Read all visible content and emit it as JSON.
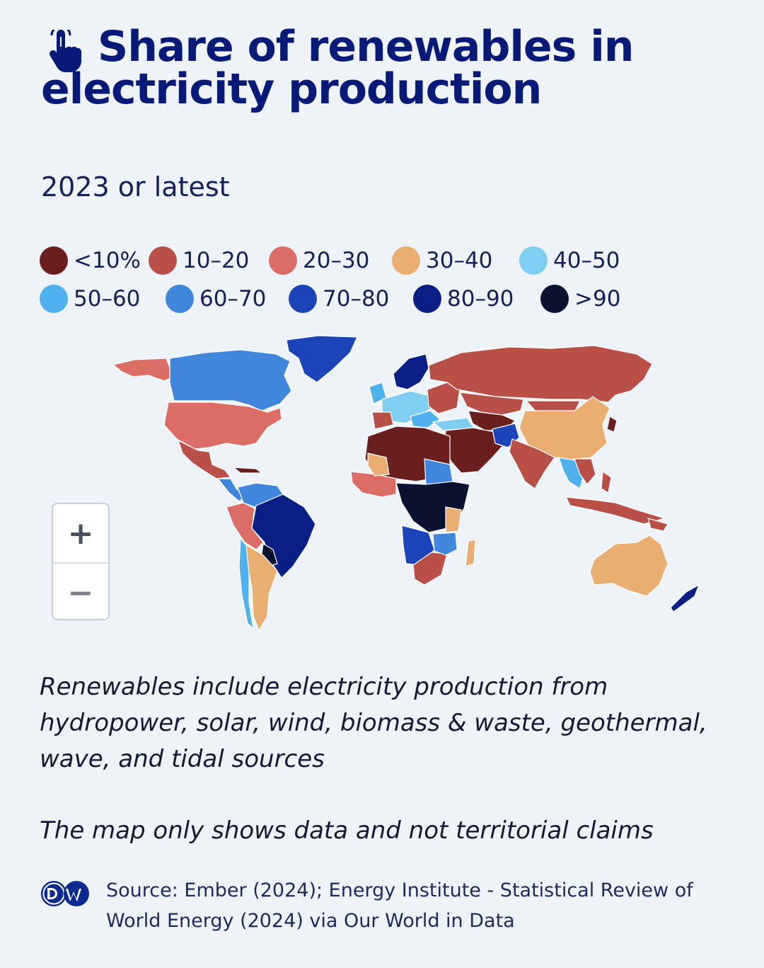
{
  "header": {
    "title": "Share of renewables in electricity production",
    "subtitle": "2023 or latest"
  },
  "icons": {
    "title_icon": "tap-hand-icon",
    "brand_logo": "dw-logo-icon"
  },
  "legend": [
    {
      "label": "<10%",
      "color": "#6b1e1e"
    },
    {
      "label": "10–20",
      "color": "#b85048"
    },
    {
      "label": "20–30",
      "color": "#dc6c66"
    },
    {
      "label": "30–40",
      "color": "#ebae72"
    },
    {
      "label": "40–50",
      "color": "#7fcdf0"
    },
    {
      "label": "50–60",
      "color": "#4fb2ee"
    },
    {
      "label": "60–70",
      "color": "#3f86dc"
    },
    {
      "label": "70–80",
      "color": "#1c43b8"
    },
    {
      "label": "80–90",
      "color": "#0a1f86"
    },
    {
      "label": ">90",
      "color": "#0a1232"
    }
  ],
  "zoom": {
    "in_label": "+",
    "out_label": "−"
  },
  "notes": {
    "renewables_definition": "Renewables include electricity production from hydropower, solar, wind, biomass & waste, geothermal, wave, and tidal sources",
    "disclaimer": "The map only shows data and not territorial claims"
  },
  "footer": {
    "source": "Source: Ember (2024); Energy Institute - Statistical Review of World Energy (2024) via Our World in Data"
  },
  "colors": {
    "background": "#eef3fa",
    "title": "#071a78"
  }
}
